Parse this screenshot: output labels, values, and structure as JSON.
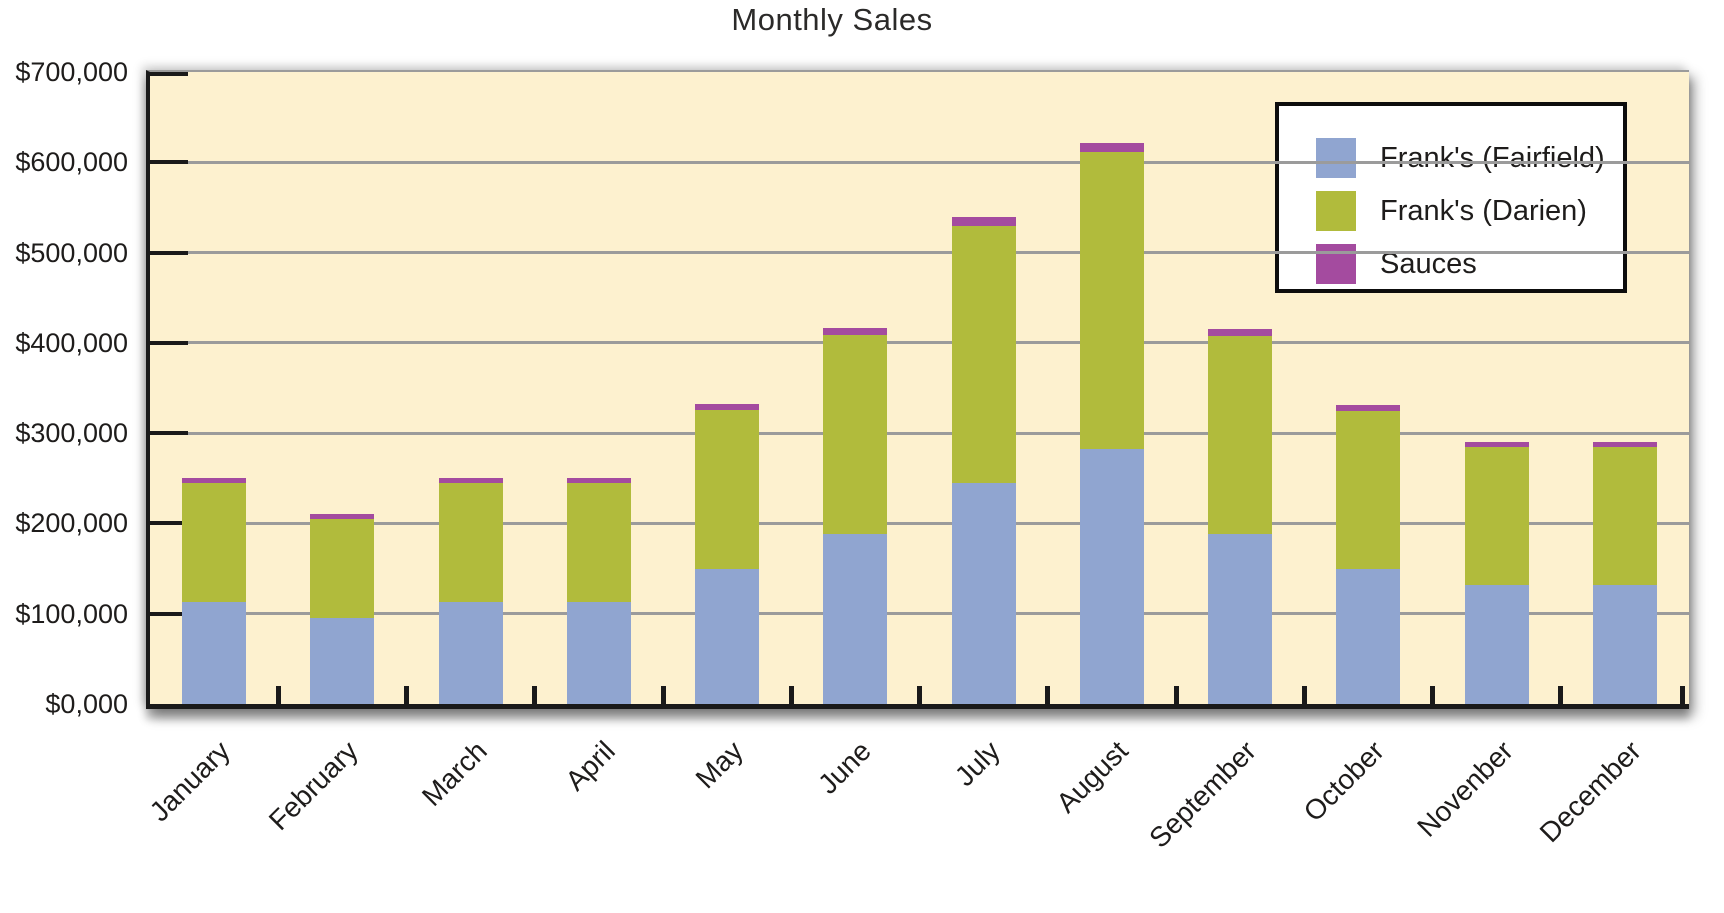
{
  "title": "Monthly Sales",
  "colors": {
    "fairfield": "#90a5d0",
    "darien": "#b1bb3c",
    "sauces": "#a44b9f",
    "plot_background": "#fdf1cf",
    "gridline": "#9b9b9b",
    "axis": "#1a1a1a"
  },
  "chart_data": {
    "type": "bar",
    "stacked": true,
    "title": "Monthly Sales",
    "categories": [
      "January",
      "February",
      "March",
      "April",
      "May",
      "June",
      "July",
      "August",
      "September",
      "October",
      "Novenber",
      "December"
    ],
    "series": [
      {
        "name": "Frank's (Fairfield)",
        "color": "#90a5d0",
        "values": [
          113000,
          95000,
          113000,
          113000,
          150000,
          188000,
          245000,
          283000,
          188000,
          150000,
          132000,
          132000
        ]
      },
      {
        "name": "Frank's (Darien)",
        "color": "#b1bb3c",
        "values": [
          132000,
          110000,
          132000,
          132000,
          176000,
          221000,
          285000,
          328000,
          220000,
          175000,
          153000,
          153000
        ]
      },
      {
        "name": "Sauces",
        "color": "#a44b9f",
        "values": [
          5000,
          5000,
          5000,
          5000,
          6000,
          7000,
          9000,
          10000,
          7000,
          6000,
          5000,
          5000
        ]
      }
    ],
    "ylim": [
      0,
      700000
    ],
    "y_tick_labels": [
      "$0,000",
      "$100,000",
      "$200,000",
      "$300,000",
      "$400,000",
      "$500,000",
      "$600,000",
      "$700,000"
    ],
    "grid": true,
    "legend_position": "top-right"
  }
}
